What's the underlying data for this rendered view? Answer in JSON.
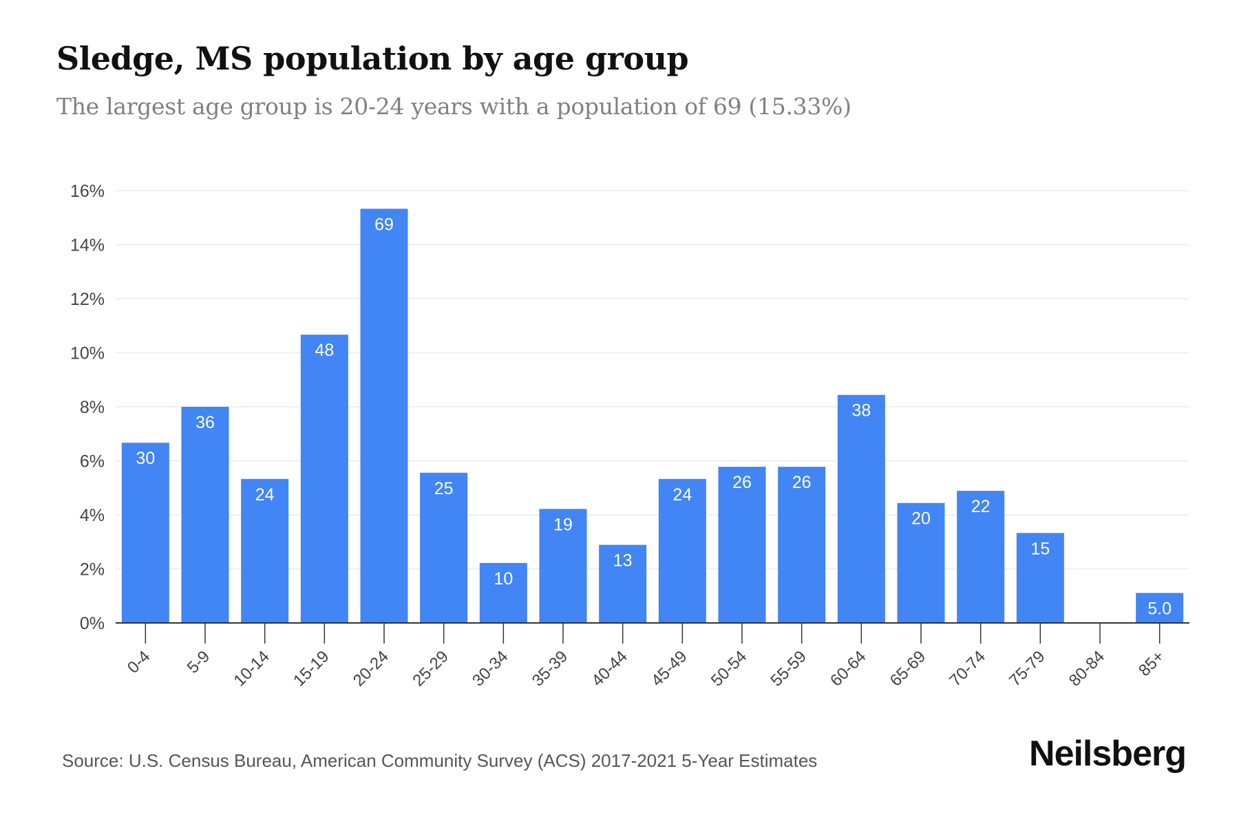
{
  "header": {
    "title": "Sledge, MS population by age group",
    "subtitle": "The largest age group is 20-24 years with a population of 69 (15.33%)"
  },
  "footer": {
    "source": "Source: U.S. Census Bureau, American Community Survey (ACS) 2017-2021 5-Year Estimates",
    "brand": "Neilsberg"
  },
  "colors": {
    "bar": "#4285f4",
    "grid": "#ebebeb",
    "axis": "#333333"
  },
  "chart_data": {
    "type": "bar",
    "title": "Sledge, MS population by age group",
    "xlabel": "",
    "ylabel": "",
    "ylim": [
      0,
      16
    ],
    "yticks": [
      0,
      2,
      4,
      6,
      8,
      10,
      12,
      14,
      16
    ],
    "ytick_labels": [
      "0%",
      "2%",
      "4%",
      "6%",
      "8%",
      "10%",
      "12%",
      "14%",
      "16%"
    ],
    "grid": true,
    "categories": [
      "0-4",
      "5-9",
      "10-14",
      "15-19",
      "20-24",
      "25-29",
      "30-34",
      "35-39",
      "40-44",
      "45-49",
      "50-54",
      "55-59",
      "60-64",
      "65-69",
      "70-74",
      "75-79",
      "80-84",
      "85+"
    ],
    "values": [
      6.67,
      8.0,
      5.33,
      10.67,
      15.33,
      5.56,
      2.22,
      4.22,
      2.89,
      5.33,
      5.78,
      5.78,
      8.44,
      4.44,
      4.89,
      3.33,
      0,
      1.11
    ],
    "data_labels": [
      "30",
      "36",
      "24",
      "48",
      "69",
      "25",
      "10",
      "19",
      "13",
      "24",
      "26",
      "26",
      "38",
      "20",
      "22",
      "15",
      "",
      "5.0"
    ]
  }
}
